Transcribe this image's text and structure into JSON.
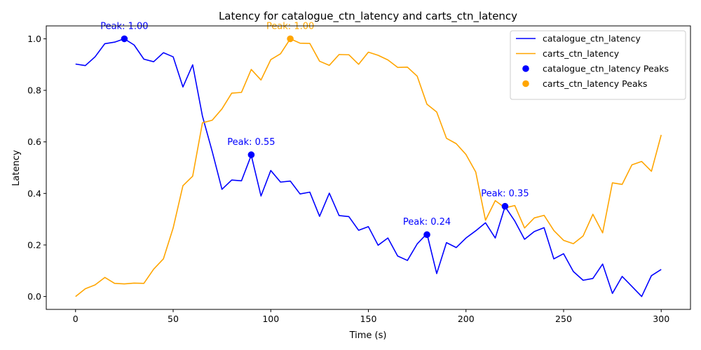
{
  "chart_data": {
    "type": "line",
    "title": "Latency for catalogue_ctn_latency and carts_ctn_latency",
    "xlabel": "Time (s)",
    "ylabel": "Latency",
    "xlim": [
      -15,
      315
    ],
    "ylim": [
      -0.05,
      1.05
    ],
    "xticks": [
      0,
      50,
      100,
      150,
      200,
      250,
      300
    ],
    "yticks": [
      0.0,
      0.2,
      0.4,
      0.6,
      0.8,
      1.0
    ],
    "xtick_labels": [
      "0",
      "50",
      "100",
      "150",
      "200",
      "250",
      "300"
    ],
    "ytick_labels": [
      "0.0",
      "0.2",
      "0.4",
      "0.6",
      "0.8",
      "1.0"
    ],
    "grid": false,
    "legend_position": "top-right",
    "x": [
      0,
      5,
      10,
      15,
      20,
      25,
      30,
      35,
      40,
      45,
      50,
      55,
      60,
      65,
      70,
      75,
      80,
      85,
      90,
      95,
      100,
      105,
      110,
      115,
      120,
      125,
      130,
      135,
      140,
      145,
      150,
      155,
      160,
      165,
      170,
      175,
      180,
      185,
      190,
      195,
      200,
      205,
      210,
      215,
      220,
      225,
      230,
      235,
      240,
      245,
      250,
      255,
      260,
      265,
      270,
      275,
      280,
      285,
      290,
      295,
      300
    ],
    "series": [
      {
        "name": "catalogue_ctn_latency",
        "color": "#0000ff",
        "values": [
          0.902,
          0.896,
          0.93,
          0.981,
          0.987,
          1.0,
          0.976,
          0.921,
          0.911,
          0.946,
          0.93,
          0.813,
          0.899,
          0.7,
          0.563,
          0.416,
          0.452,
          0.449,
          0.548,
          0.39,
          0.489,
          0.444,
          0.448,
          0.398,
          0.405,
          0.311,
          0.401,
          0.314,
          0.31,
          0.257,
          0.271,
          0.199,
          0.227,
          0.157,
          0.14,
          0.204,
          0.244,
          0.089,
          0.209,
          0.19,
          0.227,
          0.255,
          0.286,
          0.227,
          0.349,
          0.293,
          0.222,
          0.252,
          0.267,
          0.146,
          0.166,
          0.097,
          0.063,
          0.07,
          0.126,
          0.012,
          0.078,
          0.039,
          0.0,
          0.081,
          0.105
        ]
      },
      {
        "name": "carts_ctn_latency",
        "color": "#ffa500",
        "values": [
          0.0,
          0.03,
          0.045,
          0.074,
          0.051,
          0.049,
          0.052,
          0.051,
          0.106,
          0.146,
          0.266,
          0.43,
          0.467,
          0.674,
          0.684,
          0.728,
          0.789,
          0.792,
          0.881,
          0.84,
          0.919,
          0.942,
          1.0,
          0.983,
          0.982,
          0.913,
          0.897,
          0.939,
          0.938,
          0.901,
          0.948,
          0.936,
          0.918,
          0.889,
          0.89,
          0.855,
          0.746,
          0.716,
          0.614,
          0.593,
          0.551,
          0.483,
          0.296,
          0.372,
          0.344,
          0.353,
          0.266,
          0.305,
          0.315,
          0.256,
          0.218,
          0.205,
          0.235,
          0.319,
          0.247,
          0.441,
          0.435,
          0.511,
          0.524,
          0.486,
          0.627
        ]
      }
    ],
    "peaks": [
      {
        "series": "catalogue_ctn_latency",
        "x": 25,
        "y": 1.0,
        "label": "Peak: 1.00",
        "color": "#0000ff"
      },
      {
        "series": "catalogue_ctn_latency",
        "x": 90,
        "y": 0.55,
        "label": "Peak: 0.55",
        "color": "#0000ff"
      },
      {
        "series": "catalogue_ctn_latency",
        "x": 180,
        "y": 0.24,
        "label": "Peak: 0.24",
        "color": "#0000ff"
      },
      {
        "series": "catalogue_ctn_latency",
        "x": 220,
        "y": 0.35,
        "label": "Peak: 0.35",
        "color": "#0000ff"
      },
      {
        "series": "carts_ctn_latency",
        "x": 110,
        "y": 1.0,
        "label": "Peak: 1.00",
        "color": "#ffa500"
      }
    ],
    "legend": [
      {
        "label": "catalogue_ctn_latency",
        "kind": "line",
        "color": "#0000ff"
      },
      {
        "label": "carts_ctn_latency",
        "kind": "line",
        "color": "#ffa500"
      },
      {
        "label": "catalogue_ctn_latency Peaks",
        "kind": "marker",
        "color": "#0000ff"
      },
      {
        "label": "carts_ctn_latency Peaks",
        "kind": "marker",
        "color": "#ffa500"
      }
    ]
  }
}
